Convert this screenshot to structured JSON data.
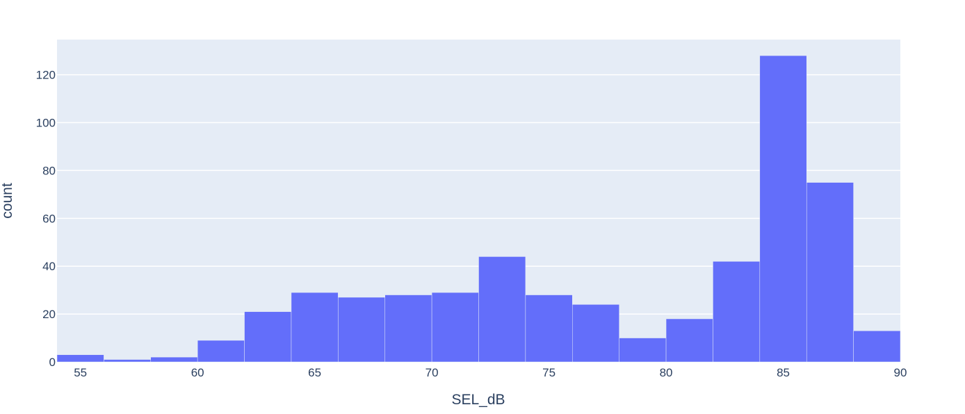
{
  "chart_data": {
    "type": "bar",
    "title": "",
    "xlabel": "SEL_dB",
    "ylabel": "count",
    "bins": [
      {
        "x0": 54,
        "x1": 56,
        "count": 3
      },
      {
        "x0": 56,
        "x1": 58,
        "count": 1
      },
      {
        "x0": 58,
        "x1": 60,
        "count": 2
      },
      {
        "x0": 60,
        "x1": 62,
        "count": 9
      },
      {
        "x0": 62,
        "x1": 64,
        "count": 21
      },
      {
        "x0": 64,
        "x1": 66,
        "count": 29
      },
      {
        "x0": 66,
        "x1": 68,
        "count": 27
      },
      {
        "x0": 68,
        "x1": 70,
        "count": 28
      },
      {
        "x0": 70,
        "x1": 72,
        "count": 29
      },
      {
        "x0": 72,
        "x1": 74,
        "count": 44
      },
      {
        "x0": 74,
        "x1": 76,
        "count": 28
      },
      {
        "x0": 76,
        "x1": 78,
        "count": 24
      },
      {
        "x0": 78,
        "x1": 80,
        "count": 10
      },
      {
        "x0": 80,
        "x1": 82,
        "count": 18
      },
      {
        "x0": 82,
        "x1": 84,
        "count": 42
      },
      {
        "x0": 84,
        "x1": 86,
        "count": 128
      },
      {
        "x0": 86,
        "x1": 88,
        "count": 75
      },
      {
        "x0": 88,
        "x1": 90,
        "count": 13
      }
    ],
    "xlim": [
      54,
      90
    ],
    "ylim": [
      0,
      134.7
    ],
    "xticks": [
      55,
      60,
      65,
      70,
      75,
      80,
      85,
      90
    ],
    "yticks": [
      0,
      20,
      40,
      60,
      80,
      100,
      120
    ],
    "grid": true,
    "colors": {
      "bar": "#636efa",
      "plot_bg": "#e5ecf6",
      "grid": "#ffffff",
      "text": "#2a3f5f"
    }
  }
}
